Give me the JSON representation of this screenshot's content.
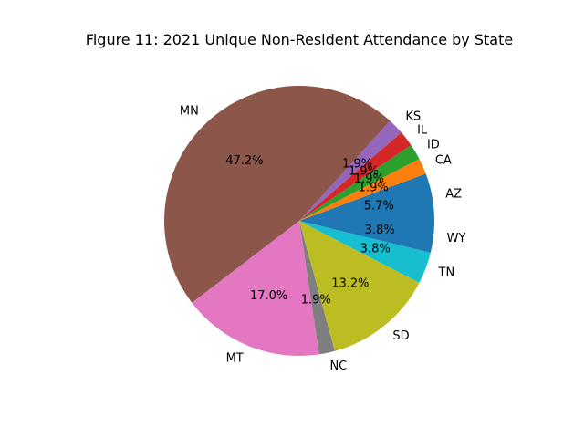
{
  "chart_data": {
    "type": "pie",
    "title": "Figure 11: 2021 Unique Non-Resident Attendance by State",
    "start_angle_deg": 0,
    "direction": "counterclockwise",
    "slices": [
      {
        "label": "AZ",
        "value": 5.7,
        "pct_label": "5.7%",
        "color": "#1f77b4"
      },
      {
        "label": "CA",
        "value": 1.9,
        "pct_label": "1.9%",
        "color": "#ff7f0e"
      },
      {
        "label": "ID",
        "value": 1.9,
        "pct_label": "1.9%",
        "color": "#2ca02c"
      },
      {
        "label": "IL",
        "value": 1.9,
        "pct_label": "1.9%",
        "color": "#d62728"
      },
      {
        "label": "KS",
        "value": 1.9,
        "pct_label": "1.9%",
        "color": "#9467bd"
      },
      {
        "label": "MN",
        "value": 47.2,
        "pct_label": "47.2%",
        "color": "#8c564b"
      },
      {
        "label": "MT",
        "value": 17.0,
        "pct_label": "17.0%",
        "color": "#e377c2"
      },
      {
        "label": "NC",
        "value": 1.9,
        "pct_label": "1.9%",
        "color": "#7f7f7f"
      },
      {
        "label": "SD",
        "value": 13.2,
        "pct_label": "13.2%",
        "color": "#bcbd22"
      },
      {
        "label": "TN",
        "value": 3.8,
        "pct_label": "3.8%",
        "color": "#17becf"
      },
      {
        "label": "WY",
        "value": 3.8,
        "pct_label": "3.8%",
        "color": "#1f77b4"
      }
    ]
  }
}
